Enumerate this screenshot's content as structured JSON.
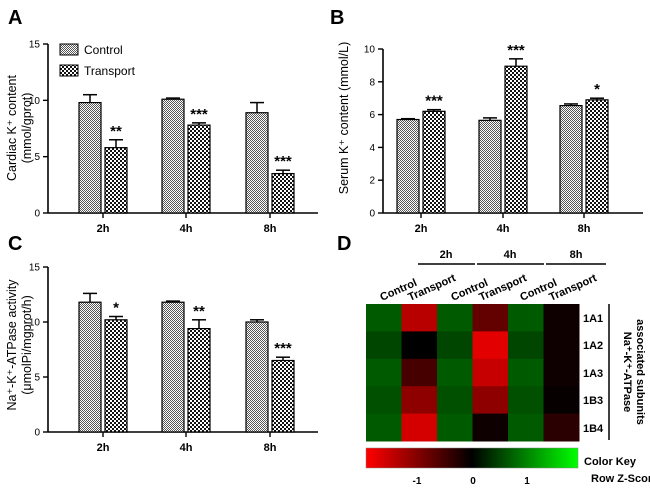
{
  "legend": {
    "control": "Control",
    "transport": "Transport"
  },
  "chart_data": [
    {
      "panel": "A",
      "type": "bar",
      "ylabel_line1": "Cardiac K⁺ content",
      "ylabel_line2": "(mmol/gprot)",
      "ylim": [
        0,
        15
      ],
      "yticks": [
        "0",
        "5",
        "10",
        "15"
      ],
      "categories": [
        "2h",
        "4h",
        "8h"
      ],
      "series": [
        {
          "name": "Control",
          "values": [
            9.8,
            10.1,
            8.9
          ],
          "errors": [
            0.7,
            0.1,
            0.9
          ]
        },
        {
          "name": "Transport",
          "values": [
            5.8,
            7.8,
            3.5
          ],
          "errors": [
            0.7,
            0.2,
            0.3
          ]
        }
      ],
      "significance": [
        "**",
        "***",
        "***"
      ]
    },
    {
      "panel": "B",
      "type": "bar",
      "ylabel_line1": "Serum K⁺ content (mmol/L)",
      "ylabel_line2": "",
      "ylim": [
        0,
        10
      ],
      "yticks": [
        "0",
        "2",
        "4",
        "6",
        "8",
        "10"
      ],
      "categories": [
        "2h",
        "4h",
        "8h"
      ],
      "series": [
        {
          "name": "Control",
          "values": [
            5.7,
            5.65,
            6.55
          ],
          "errors": [
            0.05,
            0.15,
            0.1
          ]
        },
        {
          "name": "Transport",
          "values": [
            6.2,
            8.95,
            6.9
          ],
          "errors": [
            0.1,
            0.45,
            0.1
          ]
        }
      ],
      "significance": [
        "***",
        "***",
        "*"
      ]
    },
    {
      "panel": "C",
      "type": "bar",
      "ylabel_line1": "Na⁺-K⁺-ATPase activity",
      "ylabel_line2": "(μmolPi/mgprot/h)",
      "ylim": [
        0,
        15
      ],
      "yticks": [
        "0",
        "5",
        "10",
        "15"
      ],
      "categories": [
        "2h",
        "4h",
        "8h"
      ],
      "series": [
        {
          "name": "Control",
          "values": [
            11.8,
            11.8,
            10.0
          ],
          "errors": [
            0.8,
            0.1,
            0.2
          ]
        },
        {
          "name": "Transport",
          "values": [
            10.2,
            9.4,
            6.5
          ],
          "errors": [
            0.3,
            0.8,
            0.3
          ]
        }
      ],
      "significance": [
        "*",
        "**",
        "***"
      ]
    },
    {
      "panel": "D",
      "type": "heatmap",
      "time_labels": [
        "2h",
        "4h",
        "8h"
      ],
      "column_labels": [
        "Control",
        "Transport",
        "Control",
        "Transport",
        "Control",
        "Transport"
      ],
      "row_labels": [
        "1A1",
        "1A2",
        "1A3",
        "1B3",
        "1B4"
      ],
      "side_label_line1": "Na⁺-K⁺-ATPase",
      "side_label_line2": "associated  subunits",
      "z": [
        [
          0.9,
          -1.3,
          0.9,
          -0.7,
          0.9,
          -0.1
        ],
        [
          0.7,
          0.0,
          0.7,
          -1.6,
          0.7,
          -0.1
        ],
        [
          0.9,
          -0.5,
          0.9,
          -1.4,
          0.9,
          -0.1
        ],
        [
          0.8,
          -1.0,
          0.8,
          -1.0,
          0.8,
          -0.05
        ],
        [
          0.9,
          -1.5,
          0.9,
          -0.1,
          0.9,
          -0.3
        ]
      ],
      "color_key_label": "Color Key",
      "z_label": "Row Z-Score",
      "z_ticks": [
        "-1",
        "0",
        "1"
      ],
      "z_range": [
        -1.8,
        1.8
      ]
    }
  ],
  "panel_letters": [
    "A",
    "B",
    "C",
    "D"
  ]
}
